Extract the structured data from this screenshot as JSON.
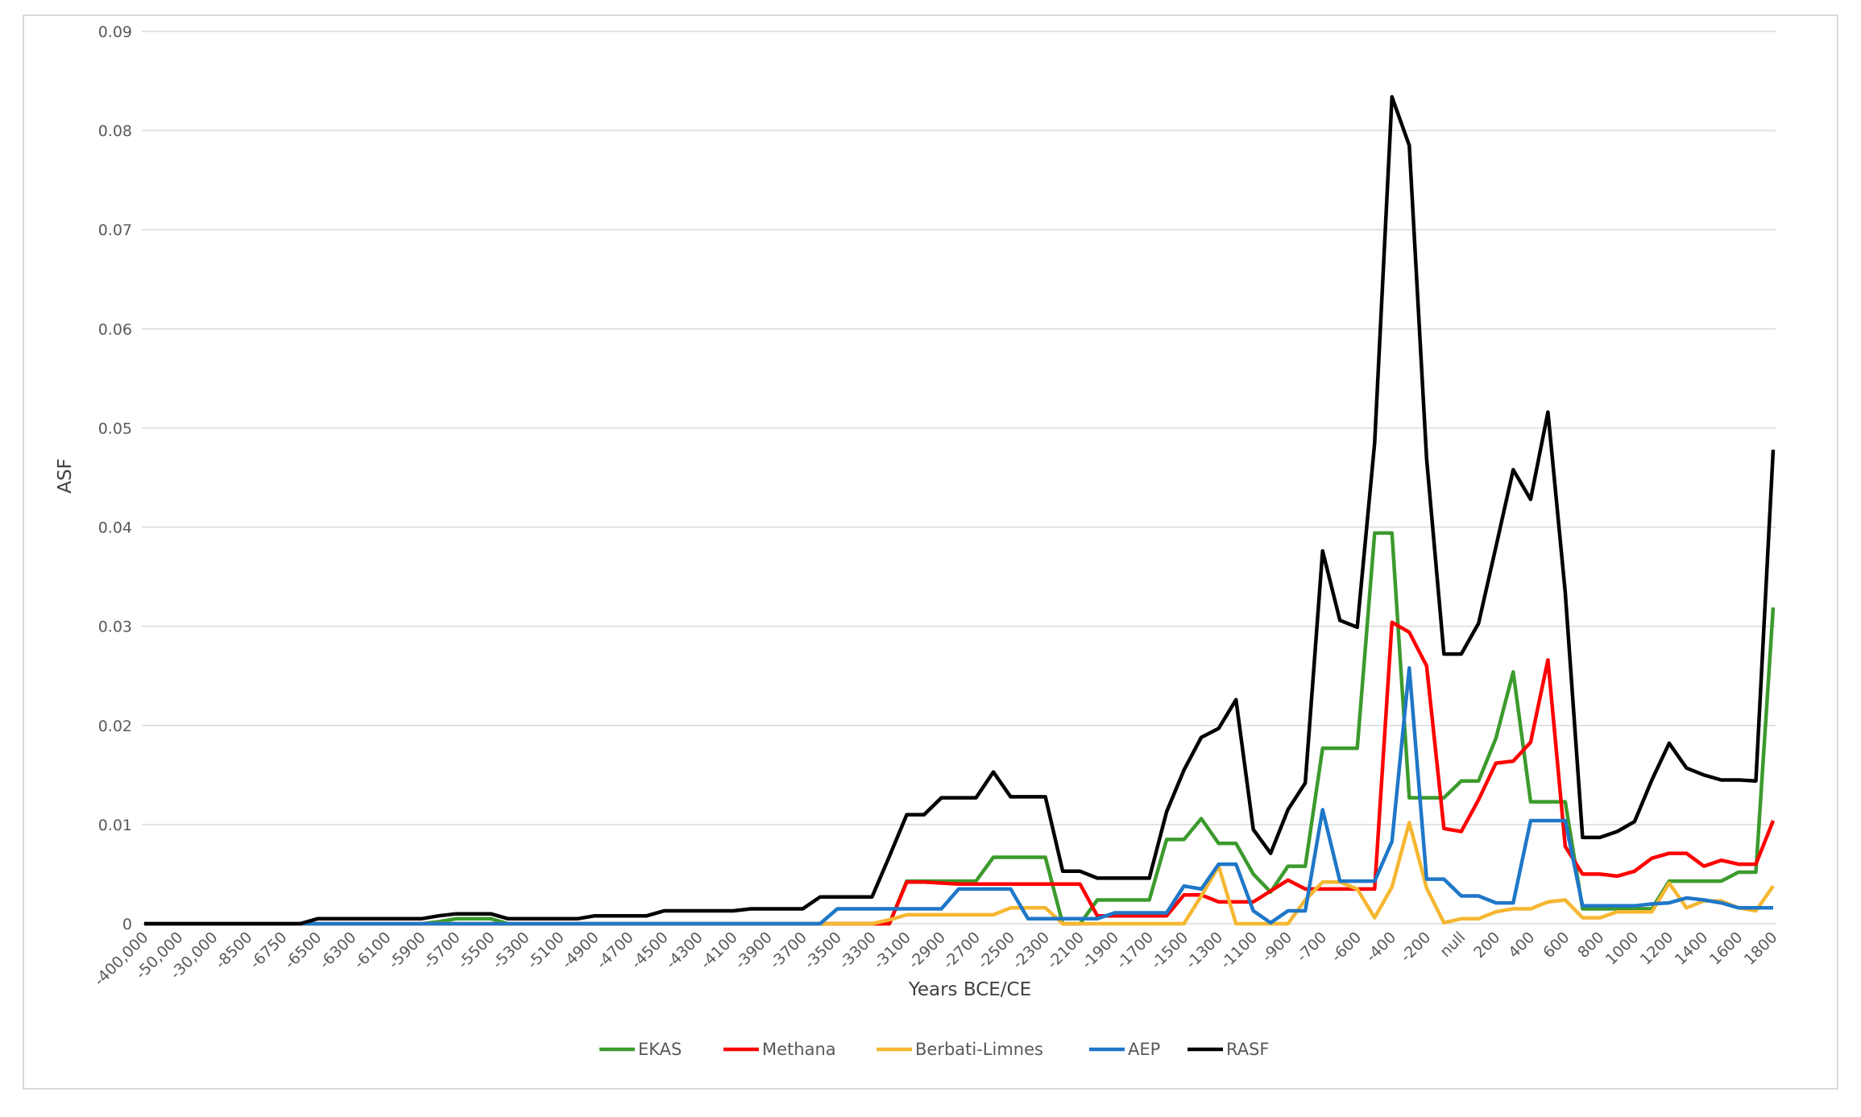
{
  "chart_data": {
    "type": "line",
    "title": "",
    "xlabel": "Years BCE/CE",
    "ylabel": "ASF",
    "ylim": [
      0,
      0.09
    ],
    "y_ticks": [
      0,
      0.01,
      0.02,
      0.03,
      0.04,
      0.05,
      0.06,
      0.07,
      0.08,
      0.09
    ],
    "y_tick_labels": [
      "0",
      "0.01",
      "0.02",
      "0.03",
      "0.04",
      "0.05",
      "0.06",
      "0.07",
      "0.08",
      "0.09"
    ],
    "grid": "horizontal",
    "legend": "bottom",
    "x_tick_labels": [
      "-400,000",
      "-50,000",
      "-30,000",
      "-8500",
      "-6750",
      "-6500",
      "-6300",
      "-6100",
      "-5900",
      "-5700",
      "-5500",
      "-5300",
      "-5100",
      "-4900",
      "-4700",
      "-4500",
      "-4300",
      "-4100",
      "-3900",
      "-3700",
      "-3500",
      "-3300",
      "-3100",
      "-2900",
      "-2700",
      "-2500",
      "-2300",
      "-2100",
      "-1900",
      "-1700",
      "-1500",
      "-1300",
      "-1100",
      "-900",
      "-700",
      "-600",
      "-400",
      "-200",
      "null",
      "200",
      "400",
      "600",
      "800",
      "1000",
      "1200",
      "1400",
      "1600",
      "1800"
    ],
    "x": [
      "-400,000",
      "-100,000",
      "-50,000",
      "-40,000",
      "-30,000",
      "-10,000",
      "-8500",
      "-7000",
      "-6750",
      "-6600",
      "-6500",
      "-6400",
      "-6300",
      "-6200",
      "-6100",
      "-6000",
      "-5900",
      "-5800",
      "-5700",
      "-5600",
      "-5500",
      "-5400",
      "-5300",
      "-5200",
      "-5100",
      "-5000",
      "-4900",
      "-4800",
      "-4700",
      "-4600",
      "-4500",
      "-4400",
      "-4300",
      "-4200",
      "-4100",
      "-4000",
      "-3900",
      "-3800",
      "-3700",
      "-3600",
      "-3500",
      "-3400",
      "-3300",
      "-3200",
      "-3100",
      "-3000",
      "-2900",
      "-2800",
      "-2700",
      "-2600",
      "-2500",
      "-2400",
      "-2300",
      "-2200",
      "-2100",
      "-2000",
      "-1900",
      "-1800",
      "-1700",
      "-1600",
      "-1500",
      "-1400",
      "-1300",
      "-1200",
      "-1100",
      "-1000",
      "-900",
      "-800",
      "-700",
      "-650",
      "-600",
      "-500",
      "-400",
      "-300",
      "-200",
      "-100",
      "null",
      "100",
      "200",
      "300",
      "400",
      "500",
      "600",
      "700",
      "800",
      "900",
      "1000",
      "1100",
      "1200",
      "1300",
      "1400",
      "1500",
      "1600",
      "1700",
      "1800"
    ],
    "series": [
      {
        "name": "EKAS",
        "color": "#3c9a2d",
        "values": [
          0,
          0,
          0,
          0,
          0,
          0,
          0,
          0,
          0,
          0,
          0,
          0,
          0,
          0,
          0,
          0,
          0,
          0.0002,
          0.0005,
          0.0005,
          0.0005,
          0,
          0,
          0,
          0,
          0,
          0,
          0,
          0,
          0,
          0,
          0,
          0,
          0,
          0,
          0,
          0,
          0,
          0,
          0,
          0,
          0,
          0,
          0,
          0.0043,
          0.0043,
          0.0043,
          0.0043,
          0.0043,
          0.0067,
          0.0067,
          0.0067,
          0.0067,
          0,
          0,
          0.0024,
          0.0024,
          0.0024,
          0.0024,
          0.0085,
          0.0085,
          0.0106,
          0.0081,
          0.0081,
          0.005,
          0.0032,
          0.0058,
          0.0058,
          0.0177,
          0.0177,
          0.0177,
          0.0394,
          0.0394,
          0.0127,
          0.0127,
          0.0127,
          0.0144,
          0.0144,
          0.0187,
          0.0254,
          0.0123,
          0.0123,
          0.0123,
          0.0015,
          0.0015,
          0.0015,
          0.0015,
          0.0015,
          0.0043,
          0.0043,
          0.0043,
          0.0043,
          0.0052,
          0.0052,
          0.0319
        ]
      },
      {
        "name": "Methana",
        "color": "#ff0000",
        "values": [
          0,
          0,
          0,
          0,
          0,
          0,
          0,
          0,
          0,
          0,
          0,
          0,
          0,
          0,
          0,
          0,
          0,
          0,
          0,
          0,
          0,
          0,
          0,
          0,
          0,
          0,
          0,
          0,
          0,
          0,
          0,
          0,
          0,
          0,
          0,
          0,
          0,
          0,
          0,
          0,
          0,
          0,
          0,
          0,
          0.0042,
          0.0042,
          0.0041,
          0.004,
          0.004,
          0.004,
          0.004,
          0.004,
          0.004,
          0.004,
          0.004,
          0.0008,
          0.0008,
          0.0008,
          0.0008,
          0.0008,
          0.0029,
          0.0029,
          0.0022,
          0.0022,
          0.0022,
          0.0033,
          0.0044,
          0.0035,
          0.0035,
          0.0035,
          0.0035,
          0.0035,
          0.0304,
          0.0294,
          0.026,
          0.0096,
          0.0093,
          0.0125,
          0.0162,
          0.0164,
          0.0183,
          0.0266,
          0.0078,
          0.005,
          0.005,
          0.0048,
          0.0053,
          0.0066,
          0.0071,
          0.0071,
          0.0058,
          0.0064,
          0.006,
          0.006,
          0.0104
        ]
      },
      {
        "name": "Berbati-Limnes",
        "color": "#f5b731",
        "values": [
          0,
          0,
          0,
          0,
          0,
          0,
          0,
          0,
          0,
          0,
          0,
          0,
          0,
          0,
          0,
          0,
          0,
          0,
          0,
          0,
          0,
          0,
          0,
          0,
          0,
          0,
          0,
          0,
          0,
          0,
          0,
          0,
          0,
          0,
          0,
          0,
          0,
          0,
          0,
          0,
          0,
          0,
          0,
          0.0004,
          0.0009,
          0.0009,
          0.0009,
          0.0009,
          0.0009,
          0.0009,
          0.0016,
          0.0016,
          0.0016,
          0,
          0,
          0,
          0,
          0,
          0,
          0,
          0,
          0.0028,
          0.0058,
          0,
          0,
          0,
          0,
          0.0024,
          0.0042,
          0.0042,
          0.0035,
          0.0006,
          0.0037,
          0.0102,
          0.0036,
          0.0001,
          0.0005,
          0.0005,
          0.0012,
          0.0015,
          0.0015,
          0.0022,
          0.0024,
          0.0006,
          0.0006,
          0.0012,
          0.0012,
          0.0012,
          0.0041,
          0.0016,
          0.0023,
          0.0023,
          0.0016,
          0.0013,
          0.0038
        ]
      },
      {
        "name": "AEP",
        "color": "#1f77c8",
        "values": [
          0,
          0,
          0,
          0,
          0,
          0,
          0,
          0,
          0,
          0,
          0,
          0,
          0,
          0,
          0,
          0,
          0,
          0,
          0,
          0,
          0,
          0,
          0,
          0,
          0,
          0,
          0,
          0,
          0,
          0,
          0,
          0,
          0,
          0,
          0,
          0,
          0,
          0,
          0,
          0,
          0.0015,
          0.0015,
          0.0015,
          0.0015,
          0.0015,
          0.0015,
          0.0015,
          0.0035,
          0.0035,
          0.0035,
          0.0035,
          0.0005,
          0.0005,
          0.0005,
          0.0005,
          0.0005,
          0.0011,
          0.0011,
          0.0011,
          0.0011,
          0.0038,
          0.0035,
          0.006,
          0.006,
          0.0013,
          0.0001,
          0.0013,
          0.0013,
          0.0115,
          0.0043,
          0.0043,
          0.0043,
          0.0083,
          0.0258,
          0.0045,
          0.0045,
          0.0028,
          0.0028,
          0.0021,
          0.0021,
          0.0104,
          0.0104,
          0.0104,
          0.0018,
          0.0018,
          0.0018,
          0.0018,
          0.002,
          0.0021,
          0.0026,
          0.0024,
          0.0021,
          0.0016,
          0.0016,
          0.0016
        ]
      },
      {
        "name": "RASF",
        "color": "#000000",
        "values": [
          0,
          0,
          0,
          0,
          0,
          0,
          0,
          0,
          0,
          0,
          0.0005,
          0.0005,
          0.0005,
          0.0005,
          0.0005,
          0.0005,
          0.0005,
          0.0008,
          0.001,
          0.001,
          0.001,
          0.0005,
          0.0005,
          0.0005,
          0.0005,
          0.0005,
          0.0008,
          0.0008,
          0.0008,
          0.0008,
          0.0013,
          0.0013,
          0.0013,
          0.0013,
          0.0013,
          0.0015,
          0.0015,
          0.0015,
          0.0015,
          0.0027,
          0.0027,
          0.0027,
          0.0027,
          0.0068,
          0.011,
          0.011,
          0.0127,
          0.0127,
          0.0127,
          0.0153,
          0.0128,
          0.0128,
          0.0128,
          0.0053,
          0.0053,
          0.0046,
          0.0046,
          0.0046,
          0.0046,
          0.0113,
          0.0155,
          0.0188,
          0.0197,
          0.0226,
          0.0095,
          0.0071,
          0.0115,
          0.0142,
          0.0376,
          0.0306,
          0.0299,
          0.0485,
          0.0834,
          0.0785,
          0.0469,
          0.0272,
          0.0272,
          0.0303,
          0.038,
          0.0458,
          0.0428,
          0.0516,
          0.0334,
          0.0087,
          0.0087,
          0.0093,
          0.0103,
          0.0145,
          0.0182,
          0.0157,
          0.015,
          0.0145,
          0.0145,
          0.0144,
          0.0478
        ]
      }
    ]
  }
}
